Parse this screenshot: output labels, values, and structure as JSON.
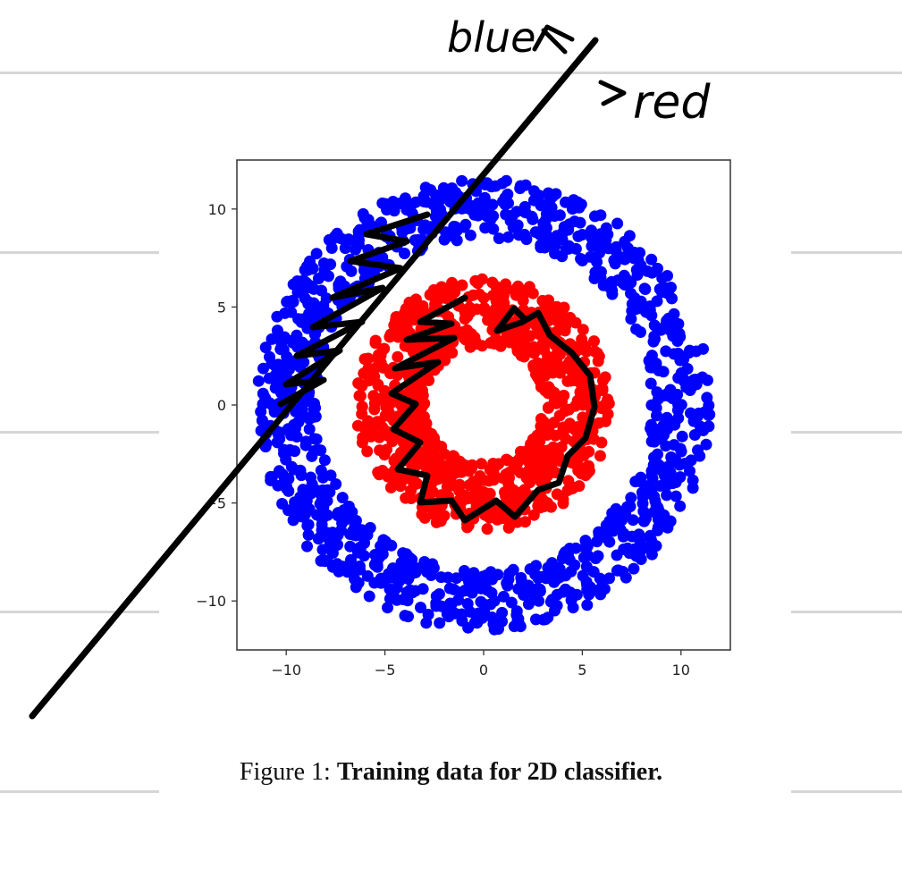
{
  "page": {
    "caption_prefix": "Figure 1:",
    "caption_title": "Training data for 2D classifier."
  },
  "annotations": {
    "label_top": "blue",
    "label_right": "red",
    "stroke_color": "#000000"
  },
  "chart_data": {
    "type": "scatter",
    "title": "",
    "xlabel": "",
    "ylabel": "",
    "xlim": [
      -12.5,
      12.5
    ],
    "ylim": [
      -12.5,
      12.5
    ],
    "xticks": [
      -10,
      -5,
      0,
      5,
      10
    ],
    "yticks": [
      -10,
      -5,
      0,
      5,
      10
    ],
    "xtick_labels": [
      "−10",
      "−5",
      "0",
      "5",
      "10"
    ],
    "ytick_labels": [
      "−10",
      "−5",
      "0",
      "5",
      "10"
    ],
    "grid": false,
    "series": [
      {
        "color": "#0000ff",
        "shape": "annulus",
        "r_min": 8.5,
        "r_max": 11.5,
        "count": 1100
      },
      {
        "color": "#ff0000",
        "shape": "annulus",
        "r_min": 3.0,
        "r_max": 6.5,
        "count": 900
      }
    ]
  }
}
